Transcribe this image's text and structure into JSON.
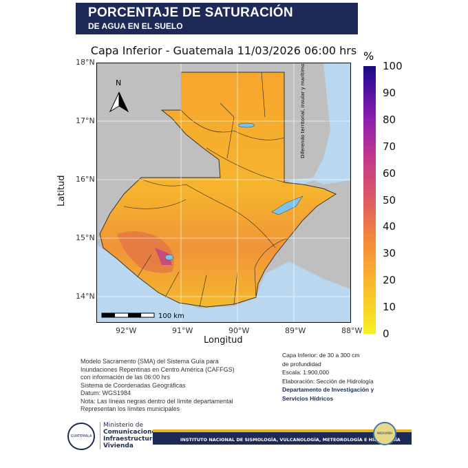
{
  "header": {
    "title_line1": "PORCENTAJE DE SATURACIÓN",
    "title_line2": "DE AGUA EN EL SUELO",
    "background": "#1d2a57"
  },
  "map": {
    "title": "Capa Inferior - Guatemala 11/03/2026 06:00 hrs",
    "x_label": "Longitud",
    "y_label": "Latitud",
    "x_ticks": [
      "92°W",
      "91°W",
      "90°W",
      "89°W",
      "88°W"
    ],
    "y_ticks": [
      "18°N",
      "17°N",
      "16°N",
      "15°N",
      "14°N"
    ],
    "north_arrow": "N",
    "scale_bar": "100 km",
    "disputed_note": "Diferendo territorial, insular y marítimo pendiente de resolver.",
    "colors": {
      "land_other": "#bfbfbf",
      "sea": "#b9d7ee",
      "lakes": "#7cc3ec"
    }
  },
  "colorbar": {
    "unit": "%",
    "ticks": [
      "100",
      "90",
      "80",
      "70",
      "60",
      "50",
      "40",
      "30",
      "20",
      "10",
      "0"
    ],
    "range": [
      0,
      100
    ]
  },
  "notes_left": [
    "Modelo Sacramento (SMA) del Sistema Guía para",
    "Inundaciones Repentinas en Centro América (CAFFGS)",
    "con información de las 06:00 hrs",
    "Sistema de Coordenadas Geográficas",
    "Datum: WGS1984",
    "Nota: Las líneas negras dentro del límite departamental",
    "Representan los límites municipales"
  ],
  "notes_right": [
    "Capa Inferior: de 30 a 300 cm",
    "de profundidad",
    "Escala: 1:900,000",
    "Elaboración: Sección de Hidrología"
  ],
  "notes_right_bold": [
    "Departamento de Investigación y",
    "Servicios Hídricos"
  ],
  "footer": {
    "ministry": [
      "Ministerio de",
      "Comunicaciones,",
      "Infraestructura y",
      "Vivienda"
    ],
    "institute": "INSTITUTO NACIONAL DE SISMOLOGÍA, VULCANOLOGÍA, METEOROLOGÍA E HIDROLOGÍA",
    "seal_text": "GUATEMALA",
    "logo_text": "INSIVUMEH"
  }
}
